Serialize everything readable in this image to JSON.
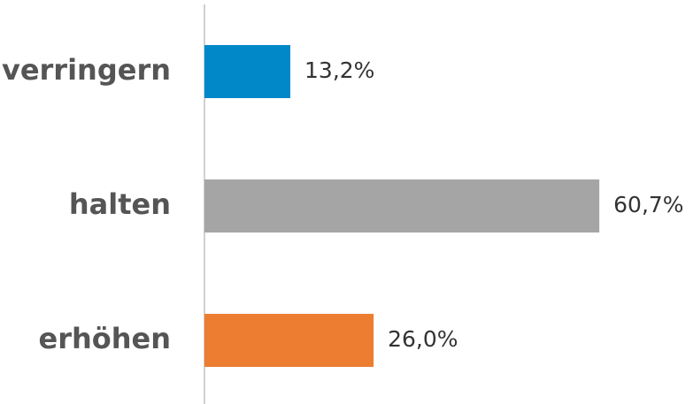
{
  "chart_data": {
    "type": "bar",
    "orientation": "horizontal",
    "categories": [
      "verringern",
      "halten",
      "erhöhen"
    ],
    "values": [
      13.2,
      60.7,
      26.0
    ],
    "value_labels": [
      "13,2%",
      "60,7%",
      "26,0%"
    ],
    "colors": [
      "#0088c8",
      "#a5a5a5",
      "#ed7d31"
    ]
  }
}
